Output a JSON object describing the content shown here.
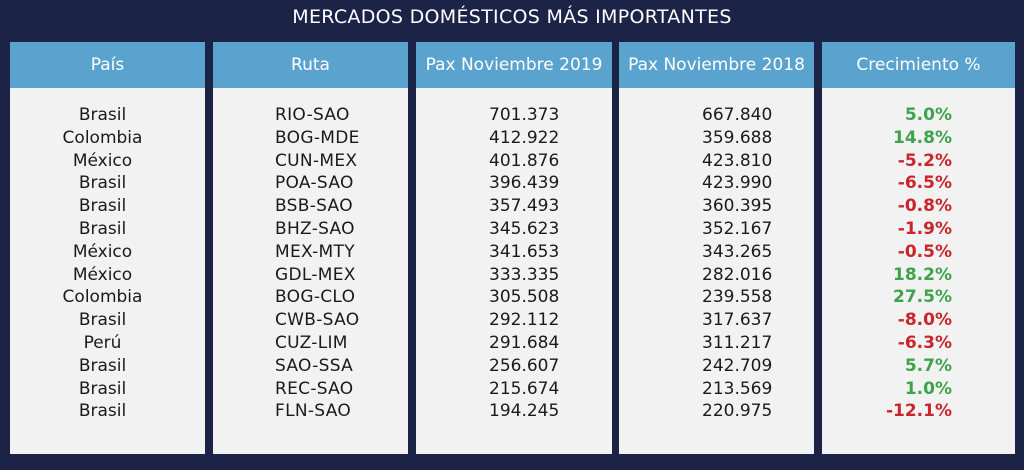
{
  "title": "MERCADOS DOMÉSTICOS MÁS IMPORTANTES",
  "headers": {
    "pais": "País",
    "ruta": "Ruta",
    "pax2019": "Pax Noviembre 2019",
    "pax2018": "Pax Noviembre 2018",
    "crecimiento": "Crecimiento %"
  },
  "colors": {
    "background": "#1b2447",
    "header": "#5ba3cf",
    "positive": "#3ea34a",
    "negative": "#c9252b"
  },
  "rows": [
    {
      "pais": "Brasil",
      "ruta": "RIO-SAO",
      "pax2019": "701.373",
      "pax2018": "667.840",
      "crecimiento": "5.0%"
    },
    {
      "pais": "Colombia",
      "ruta": "BOG-MDE",
      "pax2019": "412.922",
      "pax2018": "359.688",
      "crecimiento": "14.8%"
    },
    {
      "pais": "México",
      "ruta": "CUN-MEX",
      "pax2019": "401.876",
      "pax2018": "423.810",
      "crecimiento": "-5.2%"
    },
    {
      "pais": "Brasil",
      "ruta": "POA-SAO",
      "pax2019": "396.439",
      "pax2018": "423.990",
      "crecimiento": "-6.5%"
    },
    {
      "pais": "Brasil",
      "ruta": "BSB-SAO",
      "pax2019": "357.493",
      "pax2018": "360.395",
      "crecimiento": "-0.8%"
    },
    {
      "pais": "Brasil",
      "ruta": "BHZ-SAO",
      "pax2019": "345.623",
      "pax2018": "352.167",
      "crecimiento": "-1.9%"
    },
    {
      "pais": "México",
      "ruta": "MEX-MTY",
      "pax2019": "341.653",
      "pax2018": "343.265",
      "crecimiento": "-0.5%"
    },
    {
      "pais": "México",
      "ruta": "GDL-MEX",
      "pax2019": "333.335",
      "pax2018": "282.016",
      "crecimiento": "18.2%"
    },
    {
      "pais": "Colombia",
      "ruta": "BOG-CLO",
      "pax2019": "305.508",
      "pax2018": "239.558",
      "crecimiento": "27.5%"
    },
    {
      "pais": "Brasil",
      "ruta": "CWB-SAO",
      "pax2019": "292.112",
      "pax2018": "317.637",
      "crecimiento": "-8.0%"
    },
    {
      "pais": "Perú",
      "ruta": "CUZ-LIM",
      "pax2019": "291.684",
      "pax2018": "311.217",
      "crecimiento": "-6.3%"
    },
    {
      "pais": "Brasil",
      "ruta": "SAO-SSA",
      "pax2019": "256.607",
      "pax2018": "242.709",
      "crecimiento": "5.7%"
    },
    {
      "pais": "Brasil",
      "ruta": "REC-SAO",
      "pax2019": "215.674",
      "pax2018": "213.569",
      "crecimiento": "1.0%"
    },
    {
      "pais": "Brasil",
      "ruta": "FLN-SAO",
      "pax2019": "194.245",
      "pax2018": "220.975",
      "crecimiento": "-12.1%"
    }
  ]
}
